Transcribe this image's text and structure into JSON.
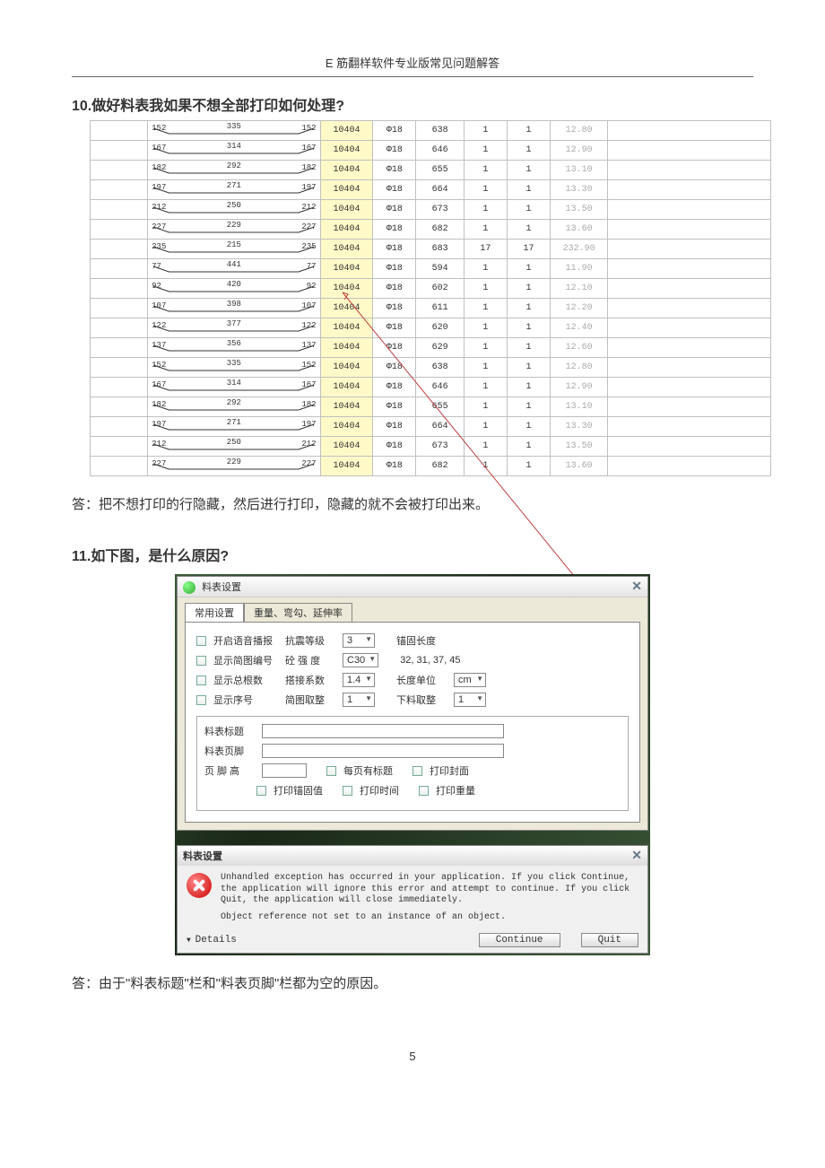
{
  "header": "E 筋翻样软件专业版常见问题解答",
  "q10": "10.做好料表我如果不想全部打印如何处理?",
  "a10": "答：把不想打印的行隐藏，然后进行打印，隐藏的就不会被打印出来。",
  "q11": "11.如下图，是什么原因?",
  "a11": "答：由于\"料表标题\"栏和\"料表页脚\"栏都为空的原因。",
  "pagenum": "5",
  "table_rows": [
    {
      "a": "152",
      "b": "335",
      "c": "152",
      "code": "10404",
      "dia": "Φ18",
      "len": "638",
      "n1": "1",
      "n2": "1",
      "w": "12.80"
    },
    {
      "a": "167",
      "b": "314",
      "c": "167",
      "code": "10404",
      "dia": "Φ18",
      "len": "646",
      "n1": "1",
      "n2": "1",
      "w": "12.90"
    },
    {
      "a": "182",
      "b": "292",
      "c": "182",
      "code": "10404",
      "dia": "Φ18",
      "len": "655",
      "n1": "1",
      "n2": "1",
      "w": "13.10"
    },
    {
      "a": "197",
      "b": "271",
      "c": "197",
      "code": "10404",
      "dia": "Φ18",
      "len": "664",
      "n1": "1",
      "n2": "1",
      "w": "13.30"
    },
    {
      "a": "212",
      "b": "250",
      "c": "212",
      "code": "10404",
      "dia": "Φ18",
      "len": "673",
      "n1": "1",
      "n2": "1",
      "w": "13.50"
    },
    {
      "a": "227",
      "b": "229",
      "c": "227",
      "code": "10404",
      "dia": "Φ18",
      "len": "682",
      "n1": "1",
      "n2": "1",
      "w": "13.60"
    },
    {
      "a": "235",
      "b": "215",
      "c": "235",
      "code": "10404",
      "dia": "Φ18",
      "len": "683",
      "n1": "17",
      "n2": "17",
      "w": "232.90"
    },
    {
      "a": "77",
      "b": "441",
      "c": "77",
      "code": "10404",
      "dia": "Φ18",
      "len": "594",
      "n1": "1",
      "n2": "1",
      "w": "11.90"
    },
    {
      "a": "92",
      "b": "420",
      "c": "92",
      "code": "10404",
      "dia": "Φ18",
      "len": "602",
      "n1": "1",
      "n2": "1",
      "w": "12.10"
    },
    {
      "a": "107",
      "b": "398",
      "c": "107",
      "code": "10404",
      "dia": "Φ18",
      "len": "611",
      "n1": "1",
      "n2": "1",
      "w": "12.20"
    },
    {
      "a": "122",
      "b": "377",
      "c": "122",
      "code": "10404",
      "dia": "Φ18",
      "len": "620",
      "n1": "1",
      "n2": "1",
      "w": "12.40"
    },
    {
      "a": "137",
      "b": "356",
      "c": "137",
      "code": "10404",
      "dia": "Φ18",
      "len": "629",
      "n1": "1",
      "n2": "1",
      "w": "12.60"
    },
    {
      "a": "152",
      "b": "335",
      "c": "152",
      "code": "10404",
      "dia": "Φ18",
      "len": "638",
      "n1": "1",
      "n2": "1",
      "w": "12.80"
    },
    {
      "a": "167",
      "b": "314",
      "c": "167",
      "code": "10404",
      "dia": "Φ18",
      "len": "646",
      "n1": "1",
      "n2": "1",
      "w": "12.90"
    },
    {
      "a": "182",
      "b": "292",
      "c": "182",
      "code": "10404",
      "dia": "Φ18",
      "len": "655",
      "n1": "1",
      "n2": "1",
      "w": "13.10"
    },
    {
      "a": "197",
      "b": "271",
      "c": "197",
      "code": "10404",
      "dia": "Φ18",
      "len": "664",
      "n1": "1",
      "n2": "1",
      "w": "13.30"
    },
    {
      "a": "212",
      "b": "250",
      "c": "212",
      "code": "10404",
      "dia": "Φ18",
      "len": "673",
      "n1": "1",
      "n2": "1",
      "w": "13.50"
    },
    {
      "a": "227",
      "b": "229",
      "c": "227",
      "code": "10404",
      "dia": "Φ18",
      "len": "682",
      "n1": "1",
      "n2": "1",
      "w": "13.60"
    }
  ],
  "dlg": {
    "title": "料表设置",
    "tab1": "常用设置",
    "tab2": "重量、弯勾、延伸率",
    "cb1": "开启语音播报",
    "l1": "抗震等级",
    "v1": "3",
    "l1b": "锚固长度",
    "cb2": "显示简图编号",
    "l2": "砼 强 度",
    "v2": "C30",
    "v2b": "32, 31, 37, 45",
    "cb3": "显示总根数",
    "l3": "搭接系数",
    "v3": "1.4",
    "l3b": "长度单位",
    "v3b": "cm",
    "cb4": "显示序号",
    "l4": "简图取整",
    "v4": "1",
    "l4b": "下料取整",
    "v4b": "1",
    "g1": "料表标题",
    "g2": "料表页脚",
    "g3": "页 脚 高",
    "gc1": "每页有标题",
    "gc2": "打印封面",
    "gc3": "打印锚固值",
    "gc4": "打印时间",
    "gc5": "打印重量"
  },
  "err": {
    "title": "料表设置",
    "msg1": "Unhandled exception has occurred in your application. If you click Continue, the application will ignore this error and attempt to continue. If you click Quit, the application will close immediately.",
    "msg2": "Object reference not set to an instance of an object.",
    "details": "Details",
    "continue": "Continue",
    "quit": "Quit"
  }
}
